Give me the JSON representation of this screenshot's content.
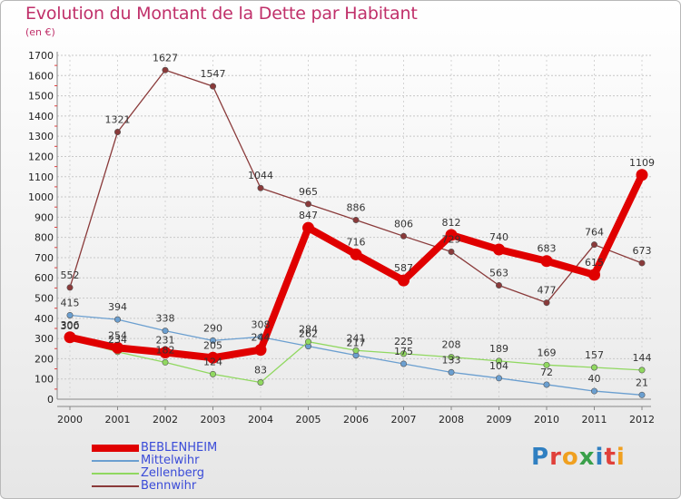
{
  "header": {
    "title": "Evolution du Montant de la Dette par Habitant",
    "subtitle": "(en €)"
  },
  "logo": {
    "text": "Proxiti",
    "letter_colors": [
      "#2f7fc1",
      "#e0403a",
      "#f0a020",
      "#3aa04a",
      "#2f7fc1",
      "#e0403a",
      "#f0a020"
    ]
  },
  "chart_data": {
    "type": "line",
    "title": "Evolution du Montant de la Dette par Habitant",
    "subtitle": "(en €)",
    "xlabel": "",
    "ylabel": "",
    "ylim": [
      0,
      1700
    ],
    "y_ticks": [
      0,
      100,
      200,
      300,
      400,
      500,
      600,
      700,
      800,
      900,
      1000,
      1100,
      1200,
      1300,
      1400,
      1500,
      1600,
      1700
    ],
    "categories": [
      "2000",
      "2001",
      "2002",
      "2003",
      "2004",
      "2005",
      "2006",
      "2007",
      "2008",
      "2009",
      "2010",
      "2011",
      "2012"
    ],
    "grid": true,
    "legend_position": "bottom-left",
    "series": [
      {
        "name": "BEBLENHEIM",
        "color": "#e00000",
        "emphasis": true,
        "values": [
          306,
          254,
          231,
          205,
          244,
          847,
          716,
          587,
          812,
          740,
          683,
          615,
          1109
        ],
        "labels": [
          "306",
          "254",
          "231",
          "205",
          "244",
          "847",
          "716",
          "587",
          "812",
          "740",
          "683",
          "615",
          "1109"
        ]
      },
      {
        "name": "Mittelwihr",
        "color": "#6b9fd0",
        "emphasis": false,
        "values": [
          415,
          394,
          338,
          290,
          308,
          262,
          217,
          175,
          133,
          104,
          72,
          40,
          21
        ],
        "labels": [
          "415",
          "394",
          "338",
          "290",
          "308",
          "262",
          "217",
          "175",
          "133",
          "104",
          "72",
          "40",
          "21"
        ]
      },
      {
        "name": "Zellenberg",
        "color": "#90d860",
        "emphasis": false,
        "values": [
          300,
          234,
          182,
          124,
          83,
          284,
          241,
          225,
          208,
          189,
          169,
          157,
          144
        ],
        "labels": [
          "300",
          "234",
          "182",
          "124",
          "83",
          "284",
          "241",
          "225",
          "208",
          "189",
          "169",
          "157",
          "144"
        ]
      },
      {
        "name": "Bennwihr",
        "color": "#8a3a3a",
        "emphasis": false,
        "values": [
          552,
          1321,
          1627,
          1547,
          1044,
          965,
          886,
          806,
          729,
          563,
          477,
          764,
          673
        ],
        "labels": [
          "552",
          "1321",
          "1627",
          "1547",
          "1044",
          "965",
          "886",
          "806",
          "729",
          "563",
          "477",
          "764",
          "673"
        ]
      }
    ]
  }
}
